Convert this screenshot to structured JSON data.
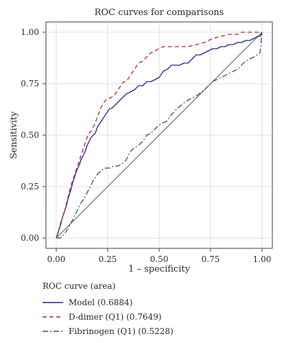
{
  "chart_data": {
    "type": "line",
    "title": "ROC curves for comparisons",
    "xlabel": "1 – specificity",
    "ylabel": "Sensitivity",
    "xlim": [
      -0.05,
      1.05
    ],
    "ylim": [
      -0.05,
      1.05
    ],
    "x_ticks": [
      "0.00",
      "0.25",
      "0.50",
      "0.75",
      "1.00"
    ],
    "y_ticks": [
      "0.00",
      "0.25",
      "0.50",
      "0.75",
      "1.00"
    ],
    "grid": true,
    "legend_title": "ROC curve (area)",
    "legend_position": "bottom",
    "reference_line": {
      "x": [
        0,
        1
      ],
      "y": [
        0,
        1
      ],
      "color": "#555555"
    },
    "series": [
      {
        "name": "Model (0.6884)",
        "color": "#1c1c8c",
        "dash": "solid",
        "x": [
          0.0,
          0.01,
          0.02,
          0.03,
          0.04,
          0.05,
          0.06,
          0.07,
          0.08,
          0.09,
          0.1,
          0.11,
          0.12,
          0.13,
          0.14,
          0.15,
          0.16,
          0.17,
          0.18,
          0.19,
          0.2,
          0.22,
          0.24,
          0.26,
          0.27,
          0.28,
          0.3,
          0.32,
          0.34,
          0.36,
          0.38,
          0.4,
          0.42,
          0.44,
          0.46,
          0.48,
          0.5,
          0.52,
          0.54,
          0.56,
          0.58,
          0.6,
          0.62,
          0.64,
          0.66,
          0.68,
          0.7,
          0.72,
          0.74,
          0.76,
          0.78,
          0.8,
          0.82,
          0.84,
          0.86,
          0.88,
          0.9,
          0.92,
          0.94,
          0.96,
          0.98,
          0.99,
          1.0
        ],
        "y": [
          0.0,
          0.03,
          0.06,
          0.1,
          0.13,
          0.16,
          0.2,
          0.23,
          0.27,
          0.3,
          0.33,
          0.35,
          0.38,
          0.4,
          0.42,
          0.45,
          0.47,
          0.49,
          0.5,
          0.51,
          0.54,
          0.57,
          0.6,
          0.63,
          0.63,
          0.64,
          0.66,
          0.68,
          0.7,
          0.71,
          0.72,
          0.74,
          0.74,
          0.76,
          0.76,
          0.77,
          0.78,
          0.81,
          0.82,
          0.84,
          0.84,
          0.84,
          0.85,
          0.85,
          0.87,
          0.89,
          0.89,
          0.9,
          0.91,
          0.92,
          0.92,
          0.93,
          0.93,
          0.94,
          0.94,
          0.95,
          0.95,
          0.96,
          0.96,
          0.97,
          0.98,
          0.98,
          1.0
        ]
      },
      {
        "name": "D-dimer (Q1) (0.7649)",
        "color": "#b01c2c",
        "dash": "6,4",
        "x": [
          0.0,
          0.01,
          0.02,
          0.03,
          0.04,
          0.05,
          0.06,
          0.07,
          0.08,
          0.09,
          0.1,
          0.11,
          0.12,
          0.13,
          0.14,
          0.15,
          0.16,
          0.17,
          0.18,
          0.19,
          0.2,
          0.22,
          0.24,
          0.26,
          0.28,
          0.3,
          0.32,
          0.33,
          0.34,
          0.36,
          0.38,
          0.4,
          0.42,
          0.44,
          0.46,
          0.48,
          0.5,
          0.52,
          0.54,
          0.56,
          0.58,
          0.6,
          0.64,
          0.68,
          0.72,
          0.76,
          0.8,
          0.84,
          0.88,
          0.9,
          0.92,
          0.96,
          1.0
        ],
        "y": [
          0.0,
          0.03,
          0.07,
          0.1,
          0.13,
          0.17,
          0.21,
          0.25,
          0.28,
          0.31,
          0.34,
          0.37,
          0.4,
          0.43,
          0.46,
          0.49,
          0.51,
          0.52,
          0.54,
          0.56,
          0.59,
          0.64,
          0.67,
          0.68,
          0.69,
          0.72,
          0.75,
          0.76,
          0.76,
          0.79,
          0.82,
          0.85,
          0.86,
          0.88,
          0.9,
          0.91,
          0.92,
          0.93,
          0.93,
          0.93,
          0.93,
          0.93,
          0.93,
          0.94,
          0.95,
          0.97,
          0.98,
          0.99,
          0.99,
          1.0,
          1.0,
          1.0,
          1.0
        ]
      },
      {
        "name": "Fibrinogen (Q1) (0.5228)",
        "color": "#1f5a3a",
        "dash": "8,3,2,3",
        "x": [
          0.0,
          0.02,
          0.04,
          0.06,
          0.08,
          0.1,
          0.12,
          0.14,
          0.16,
          0.18,
          0.2,
          0.22,
          0.24,
          0.26,
          0.28,
          0.3,
          0.32,
          0.34,
          0.36,
          0.38,
          0.4,
          0.42,
          0.44,
          0.46,
          0.48,
          0.5,
          0.52,
          0.54,
          0.56,
          0.58,
          0.6,
          0.64,
          0.68,
          0.72,
          0.76,
          0.8,
          0.84,
          0.88,
          0.92,
          0.96,
          0.99,
          1.0
        ],
        "y": [
          0.0,
          0.0,
          0.02,
          0.05,
          0.09,
          0.13,
          0.17,
          0.2,
          0.24,
          0.28,
          0.31,
          0.33,
          0.34,
          0.34,
          0.35,
          0.35,
          0.36,
          0.38,
          0.42,
          0.44,
          0.45,
          0.47,
          0.5,
          0.51,
          0.53,
          0.55,
          0.56,
          0.57,
          0.6,
          0.62,
          0.64,
          0.67,
          0.69,
          0.72,
          0.76,
          0.78,
          0.8,
          0.82,
          0.86,
          0.88,
          0.9,
          1.0
        ]
      }
    ]
  }
}
